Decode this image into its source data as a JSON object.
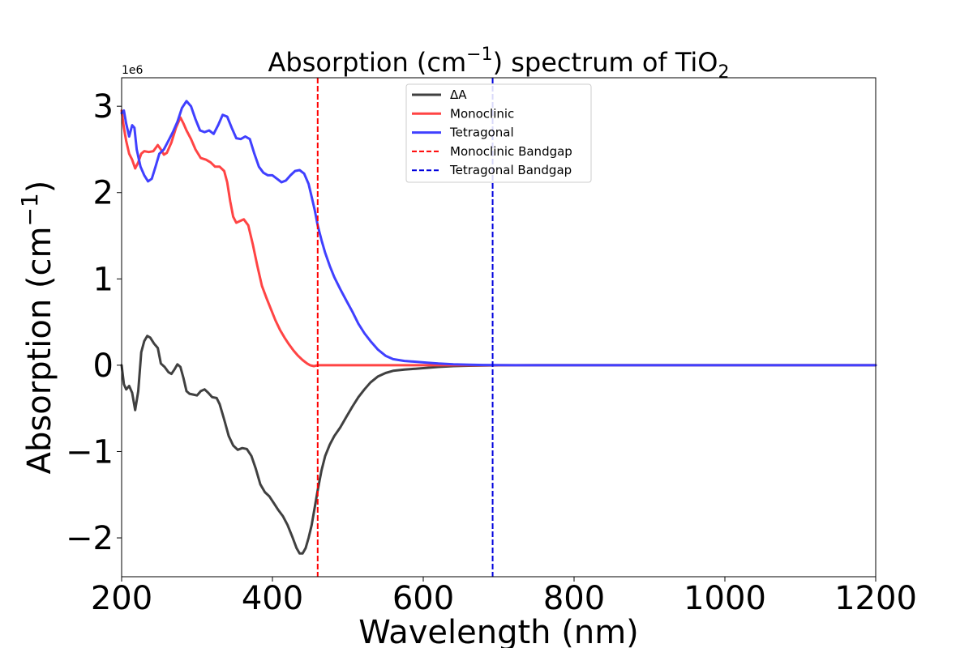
{
  "chart_data": {
    "type": "line",
    "title_main": "Absorption (cm",
    "title_sup": "−1",
    "title_mid": ") spectrum of TiO",
    "title_sub": "2",
    "xlabel": "Wavelength (nm)",
    "ylabel_main": "Absorption (cm",
    "ylabel_sup": "−1",
    "ylabel_end": ")",
    "y_offset_text": "1e6",
    "xlim": [
      200,
      1200
    ],
    "ylim": [
      -2.45,
      3.33
    ],
    "y_scale_factor": 1000000,
    "x_ticks": [
      200,
      400,
      600,
      800,
      1000,
      1200
    ],
    "x_tick_labels": [
      "200",
      "400",
      "600",
      "800",
      "1000",
      "1200"
    ],
    "y_ticks": [
      -2,
      -1,
      0,
      1,
      2,
      3
    ],
    "y_tick_labels": [
      "−2",
      "−1",
      "0",
      "1",
      "2",
      "3"
    ],
    "grid": false,
    "legend_position": "top-center",
    "series": [
      {
        "name": "ΔA",
        "color": "#404040",
        "style": "solid",
        "points": [
          [
            200,
            0.0
          ],
          [
            203,
            -0.22
          ],
          [
            206,
            -0.28
          ],
          [
            210,
            -0.24
          ],
          [
            214,
            -0.32
          ],
          [
            218,
            -0.52
          ],
          [
            222,
            -0.3
          ],
          [
            226,
            0.15
          ],
          [
            230,
            0.28
          ],
          [
            234,
            0.34
          ],
          [
            238,
            0.32
          ],
          [
            243,
            0.25
          ],
          [
            248,
            0.2
          ],
          [
            252,
            0.02
          ],
          [
            257,
            -0.02
          ],
          [
            262,
            -0.08
          ],
          [
            266,
            -0.1
          ],
          [
            270,
            -0.05
          ],
          [
            274,
            0.01
          ],
          [
            278,
            -0.02
          ],
          [
            282,
            -0.15
          ],
          [
            286,
            -0.3
          ],
          [
            290,
            -0.33
          ],
          [
            295,
            -0.34
          ],
          [
            300,
            -0.35
          ],
          [
            305,
            -0.3
          ],
          [
            310,
            -0.28
          ],
          [
            315,
            -0.32
          ],
          [
            320,
            -0.37
          ],
          [
            326,
            -0.38
          ],
          [
            330,
            -0.45
          ],
          [
            336,
            -0.63
          ],
          [
            342,
            -0.82
          ],
          [
            348,
            -0.93
          ],
          [
            354,
            -0.98
          ],
          [
            360,
            -0.96
          ],
          [
            366,
            -0.97
          ],
          [
            372,
            -1.05
          ],
          [
            378,
            -1.2
          ],
          [
            384,
            -1.38
          ],
          [
            390,
            -1.47
          ],
          [
            396,
            -1.52
          ],
          [
            402,
            -1.6
          ],
          [
            408,
            -1.68
          ],
          [
            414,
            -1.75
          ],
          [
            420,
            -1.85
          ],
          [
            426,
            -1.98
          ],
          [
            432,
            -2.12
          ],
          [
            436,
            -2.18
          ],
          [
            440,
            -2.18
          ],
          [
            444,
            -2.12
          ],
          [
            448,
            -2.0
          ],
          [
            452,
            -1.85
          ],
          [
            456,
            -1.65
          ],
          [
            460,
            -1.45
          ],
          [
            465,
            -1.22
          ],
          [
            470,
            -1.05
          ],
          [
            476,
            -0.92
          ],
          [
            482,
            -0.82
          ],
          [
            490,
            -0.72
          ],
          [
            498,
            -0.6
          ],
          [
            506,
            -0.48
          ],
          [
            514,
            -0.37
          ],
          [
            522,
            -0.28
          ],
          [
            530,
            -0.2
          ],
          [
            540,
            -0.13
          ],
          [
            550,
            -0.09
          ],
          [
            560,
            -0.065
          ],
          [
            575,
            -0.05
          ],
          [
            590,
            -0.04
          ],
          [
            605,
            -0.03
          ],
          [
            620,
            -0.02
          ],
          [
            640,
            -0.01
          ],
          [
            660,
            -0.006
          ],
          [
            680,
            -0.003
          ],
          [
            700,
            -0.001
          ],
          [
            750,
            0.0
          ],
          [
            850,
            0.0
          ],
          [
            1000,
            0.0
          ],
          [
            1200,
            0.0
          ]
        ]
      },
      {
        "name": "Monoclinic",
        "color": "#ff4444",
        "style": "solid",
        "points": [
          [
            200,
            2.95
          ],
          [
            203,
            2.75
          ],
          [
            206,
            2.6
          ],
          [
            210,
            2.45
          ],
          [
            214,
            2.38
          ],
          [
            218,
            2.28
          ],
          [
            222,
            2.35
          ],
          [
            226,
            2.45
          ],
          [
            230,
            2.48
          ],
          [
            236,
            2.47
          ],
          [
            242,
            2.48
          ],
          [
            248,
            2.55
          ],
          [
            252,
            2.5
          ],
          [
            256,
            2.44
          ],
          [
            260,
            2.46
          ],
          [
            266,
            2.58
          ],
          [
            272,
            2.75
          ],
          [
            278,
            2.87
          ],
          [
            282,
            2.8
          ],
          [
            286,
            2.72
          ],
          [
            292,
            2.62
          ],
          [
            298,
            2.5
          ],
          [
            305,
            2.4
          ],
          [
            312,
            2.38
          ],
          [
            318,
            2.35
          ],
          [
            324,
            2.3
          ],
          [
            330,
            2.3
          ],
          [
            336,
            2.25
          ],
          [
            340,
            2.12
          ],
          [
            344,
            1.9
          ],
          [
            348,
            1.72
          ],
          [
            352,
            1.65
          ],
          [
            357,
            1.67
          ],
          [
            362,
            1.69
          ],
          [
            368,
            1.62
          ],
          [
            374,
            1.4
          ],
          [
            380,
            1.15
          ],
          [
            386,
            0.92
          ],
          [
            392,
            0.78
          ],
          [
            398,
            0.65
          ],
          [
            404,
            0.52
          ],
          [
            410,
            0.41
          ],
          [
            416,
            0.32
          ],
          [
            422,
            0.24
          ],
          [
            428,
            0.17
          ],
          [
            434,
            0.11
          ],
          [
            440,
            0.06
          ],
          [
            446,
            0.02
          ],
          [
            450,
            0.0
          ],
          [
            455,
            -0.01
          ],
          [
            460,
            0.0
          ],
          [
            480,
            0.0
          ],
          [
            600,
            0.0
          ],
          [
            800,
            0.0
          ],
          [
            1000,
            0.0
          ],
          [
            1200,
            0.0
          ]
        ]
      },
      {
        "name": "Tetragonal",
        "color": "#4040ff",
        "style": "solid",
        "points": [
          [
            200,
            2.92
          ],
          [
            203,
            2.95
          ],
          [
            206,
            2.8
          ],
          [
            210,
            2.65
          ],
          [
            214,
            2.78
          ],
          [
            217,
            2.75
          ],
          [
            220,
            2.5
          ],
          [
            225,
            2.3
          ],
          [
            230,
            2.2
          ],
          [
            235,
            2.13
          ],
          [
            240,
            2.16
          ],
          [
            245,
            2.3
          ],
          [
            250,
            2.45
          ],
          [
            256,
            2.5
          ],
          [
            262,
            2.6
          ],
          [
            268,
            2.7
          ],
          [
            274,
            2.82
          ],
          [
            280,
            2.98
          ],
          [
            286,
            3.06
          ],
          [
            292,
            3.0
          ],
          [
            298,
            2.85
          ],
          [
            304,
            2.72
          ],
          [
            310,
            2.7
          ],
          [
            316,
            2.72
          ],
          [
            322,
            2.68
          ],
          [
            328,
            2.78
          ],
          [
            334,
            2.9
          ],
          [
            340,
            2.88
          ],
          [
            346,
            2.75
          ],
          [
            352,
            2.63
          ],
          [
            358,
            2.62
          ],
          [
            364,
            2.65
          ],
          [
            370,
            2.62
          ],
          [
            376,
            2.45
          ],
          [
            382,
            2.3
          ],
          [
            388,
            2.23
          ],
          [
            394,
            2.2
          ],
          [
            400,
            2.2
          ],
          [
            406,
            2.16
          ],
          [
            412,
            2.12
          ],
          [
            418,
            2.14
          ],
          [
            424,
            2.2
          ],
          [
            430,
            2.25
          ],
          [
            436,
            2.26
          ],
          [
            442,
            2.22
          ],
          [
            448,
            2.1
          ],
          [
            452,
            1.95
          ],
          [
            456,
            1.8
          ],
          [
            460,
            1.62
          ],
          [
            465,
            1.45
          ],
          [
            470,
            1.3
          ],
          [
            476,
            1.15
          ],
          [
            482,
            1.02
          ],
          [
            490,
            0.88
          ],
          [
            498,
            0.75
          ],
          [
            506,
            0.62
          ],
          [
            514,
            0.48
          ],
          [
            522,
            0.37
          ],
          [
            530,
            0.28
          ],
          [
            540,
            0.18
          ],
          [
            550,
            0.11
          ],
          [
            560,
            0.07
          ],
          [
            575,
            0.05
          ],
          [
            590,
            0.04
          ],
          [
            605,
            0.03
          ],
          [
            620,
            0.02
          ],
          [
            640,
            0.01
          ],
          [
            660,
            0.006
          ],
          [
            680,
            0.003
          ],
          [
            700,
            0.001
          ],
          [
            750,
            0.0
          ],
          [
            850,
            0.0
          ],
          [
            1000,
            0.0
          ],
          [
            1200,
            0.0
          ]
        ]
      }
    ],
    "vlines": [
      {
        "name": "Monoclinic Bandgap",
        "x": 460,
        "color": "#ff0000",
        "style": "dashed"
      },
      {
        "name": "Tetragonal Bandgap",
        "x": 692,
        "color": "#0000dd",
        "style": "dashed"
      }
    ]
  }
}
